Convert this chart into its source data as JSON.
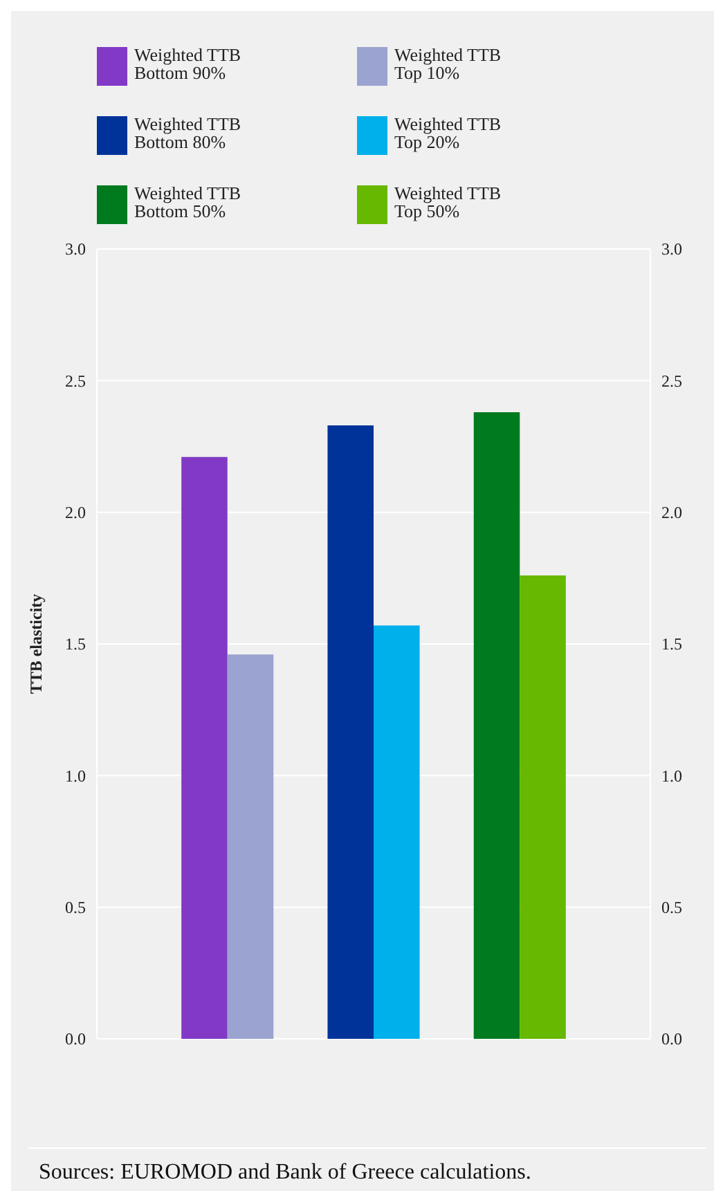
{
  "chart_data": {
    "type": "bar",
    "ylabel": "TTB elasticity",
    "categories": [
      null,
      null,
      null
    ],
    "series": [
      {
        "name": "Weighted TTB Bottom 90%",
        "color": "#8139c6",
        "values": [
          2.21,
          null,
          null
        ]
      },
      {
        "name": "Weighted TTB Top 10%",
        "color": "#9ba3d0",
        "values": [
          1.46,
          null,
          null
        ]
      },
      {
        "name": "Weighted TTB Bottom 80%",
        "color": "#003399",
        "values": [
          null,
          2.33,
          null
        ]
      },
      {
        "name": "Weighted TTB Top 20%",
        "color": "#00b0ea",
        "values": [
          null,
          1.57,
          null
        ]
      },
      {
        "name": "Weighted TTB Bottom 50%",
        "color": "#007a1e",
        "values": [
          null,
          null,
          2.38
        ]
      },
      {
        "name": "Weighted TTB Top 50%",
        "color": "#66b800",
        "values": [
          null,
          null,
          1.76
        ]
      }
    ],
    "ylim": [
      0,
      3
    ],
    "yticks": [
      {
        "value": 0,
        "label": "0.0"
      },
      {
        "value": 0.5,
        "label": "0.5"
      },
      {
        "value": 1,
        "label": "1.0"
      },
      {
        "value": 1.5,
        "label": "1.5"
      },
      {
        "value": 2,
        "label": "2.0"
      },
      {
        "value": 2.5,
        "label": "2.5"
      },
      {
        "value": 3,
        "label": "3.0"
      }
    ],
    "y2lim": [
      0,
      3
    ],
    "y2ticks": [
      {
        "value": 0,
        "label": "0.0"
      },
      {
        "value": 0.5,
        "label": "0.5"
      },
      {
        "value": 1,
        "label": "1.0"
      },
      {
        "value": 1.5,
        "label": "1.5"
      },
      {
        "value": 2,
        "label": "2.0"
      },
      {
        "value": 2.5,
        "label": "2.5"
      },
      {
        "value": 3,
        "label": "3.0"
      }
    ],
    "grid": "y",
    "legend": "top",
    "annotations": [
      "Sources: EUROMOD and Bank of Greece calculations."
    ]
  }
}
